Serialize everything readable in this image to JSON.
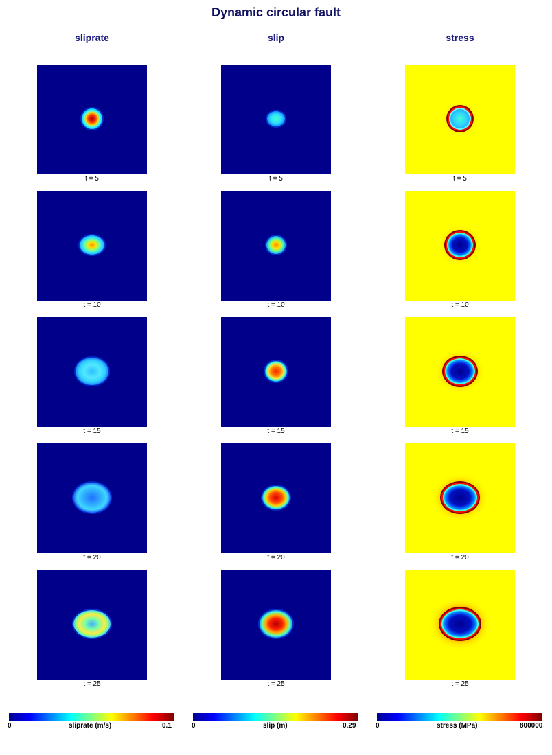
{
  "title": "Dynamic circular fault",
  "columns": [
    {
      "key": "sliprate",
      "title": "sliprate",
      "colorbar": {
        "min": "0",
        "max": "0.1",
        "label": "sliprate (m/s)"
      }
    },
    {
      "key": "slip",
      "title": "slip",
      "colorbar": {
        "min": "0",
        "max": "0.29",
        "label": "slip (m)"
      }
    },
    {
      "key": "stress",
      "title": "stress",
      "colorbar": {
        "min": "0",
        "max": "800000",
        "label": "stress (MPa)"
      }
    }
  ],
  "time_labels": [
    "t = 5",
    "t = 10",
    "t = 15",
    "t = 20",
    "t = 25"
  ],
  "colormap": "jet",
  "colors": {
    "background_low": "#00008b",
    "stress_background": "#ffff00",
    "title": "#101060"
  },
  "chart_data": {
    "type": "heatmap",
    "title": "Dynamic circular fault",
    "grid": "3 columns x 5 rows of square maps",
    "series": [
      {
        "name": "sliprate",
        "unit": "m/s",
        "range": [
          0,
          0.1
        ],
        "times": [
          5,
          10,
          15,
          20,
          25
        ],
        "rupture_radius": [
          0.1,
          0.14,
          0.17,
          0.19,
          0.21
        ],
        "center_value": [
          0.1,
          0.06,
          0.035,
          0.03,
          0.045
        ]
      },
      {
        "name": "slip",
        "unit": "m",
        "range": [
          0,
          0.29
        ],
        "times": [
          5,
          10,
          15,
          20,
          25
        ],
        "rupture_radius": [
          0.08,
          0.1,
          0.11,
          0.12,
          0.14
        ],
        "center_value": [
          0.12,
          0.18,
          0.25,
          0.26,
          0.29
        ]
      },
      {
        "name": "stress",
        "unit": "MPa",
        "range": [
          0,
          800000
        ],
        "times": [
          5,
          10,
          15,
          20,
          25
        ],
        "rupture_radius": [
          0.1,
          0.12,
          0.14,
          0.15,
          0.16
        ],
        "center_value": [
          250000,
          50000,
          30000,
          30000,
          30000
        ]
      }
    ]
  }
}
